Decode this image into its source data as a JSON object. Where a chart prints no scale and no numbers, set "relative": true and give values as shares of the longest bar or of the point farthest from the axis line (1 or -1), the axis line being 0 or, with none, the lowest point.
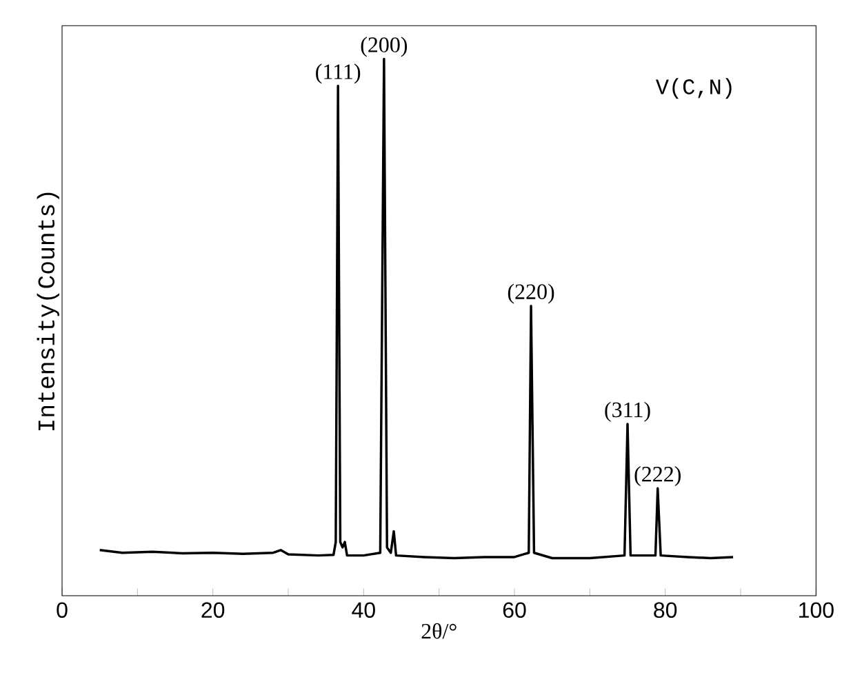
{
  "chart_data": {
    "type": "line",
    "relative": true,
    "xlabel": "2θ/°",
    "ylabel": "Intensity(Counts)",
    "x": [
      5,
      8,
      12,
      16,
      20,
      24,
      28,
      29,
      30,
      34,
      36,
      36.3,
      36.6,
      36.9,
      37.2,
      37.5,
      37.8,
      40,
      42.2,
      42.7,
      43.1,
      43.6,
      44,
      44.3,
      48,
      52,
      56,
      60,
      61.9,
      62.2,
      62.6,
      65,
      70,
      74.6,
      75,
      75.4,
      78.7,
      79.0,
      79.4,
      83,
      86,
      89
    ],
    "series": [
      {
        "color": "#000000",
        "values": [
          0.085,
          0.08,
          0.082,
          0.079,
          0.08,
          0.078,
          0.08,
          0.085,
          0.077,
          0.075,
          0.076,
          0.1,
          0.95,
          0.1,
          0.09,
          0.1,
          0.075,
          0.075,
          0.08,
          1.0,
          0.09,
          0.08,
          0.12,
          0.075,
          0.072,
          0.07,
          0.072,
          0.072,
          0.08,
          0.54,
          0.08,
          0.07,
          0.07,
          0.075,
          0.32,
          0.075,
          0.075,
          0.2,
          0.075,
          0.072,
          0.07,
          0.072
        ]
      }
    ],
    "xlim": [
      0,
      100
    ],
    "xticks": [
      0,
      {
        "value": 10,
        "label": null
      },
      20,
      {
        "value": 30,
        "label": null
      },
      40,
      {
        "value": 50,
        "label": null
      },
      60,
      {
        "value": 70,
        "label": null
      },
      80,
      {
        "value": 90,
        "label": null
      },
      100
    ],
    "tick_labels": "x",
    "grid": false,
    "marker": "none",
    "line_style": "solid",
    "annotations": [
      {
        "text": "(111)",
        "x": 36.6,
        "y": 0.95
      },
      {
        "text": "(200)",
        "x": 42.7,
        "y": 1.0
      },
      {
        "text": "(220)",
        "x": 62.2,
        "y": 0.54
      },
      {
        "text": "(311)",
        "x": 75,
        "y": 0.32
      },
      {
        "text": "(222)",
        "x": 79.0,
        "y": 0.2
      },
      "V(C,N)"
    ]
  }
}
